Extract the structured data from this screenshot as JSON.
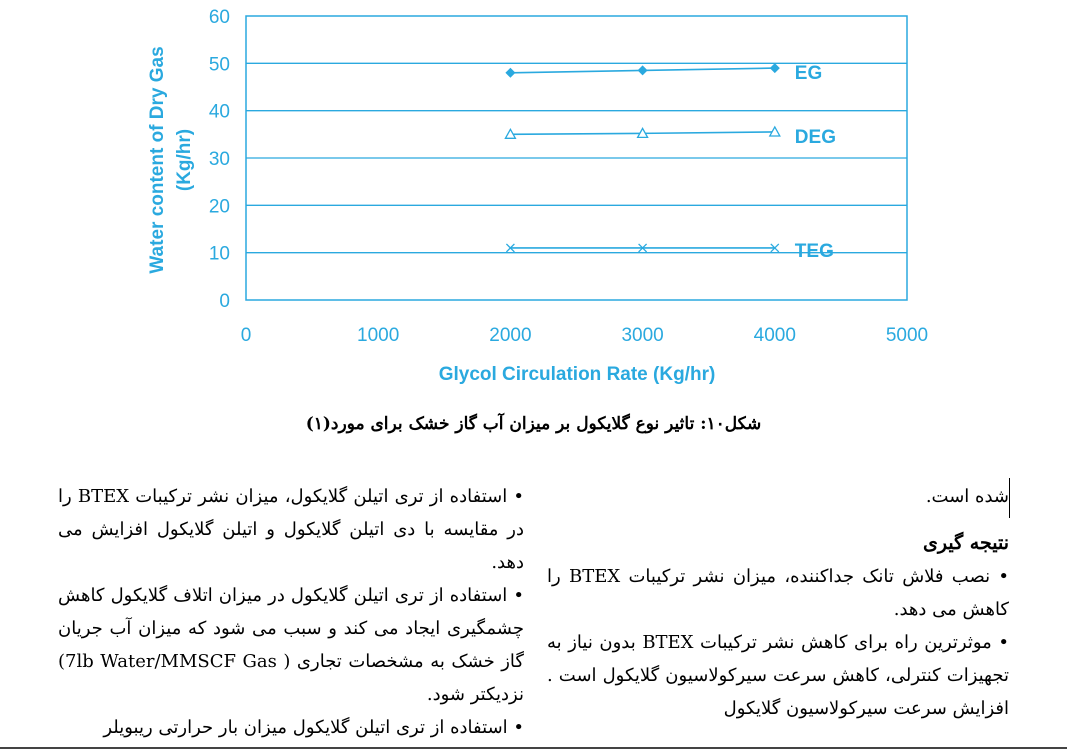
{
  "chart_data": {
    "type": "line",
    "xlabel": "Glycol Circulation Rate (Kg/hr)",
    "ylabel_line1": "Water content of Dry Gas",
    "ylabel_line2": "(Kg/hr)",
    "xlim": [
      0,
      5000
    ],
    "ylim": [
      0,
      60
    ],
    "x_ticks": [
      "0",
      "1000",
      "2000",
      "3000",
      "4000",
      "5000"
    ],
    "y_ticks": [
      "0",
      "10",
      "20",
      "30",
      "40",
      "50",
      "60"
    ],
    "grid": "horizontal",
    "color": "#2aa9df",
    "series": [
      {
        "name": "EG",
        "marker": "diamond",
        "x": [
          2000,
          3000,
          4000
        ],
        "y": [
          48,
          48.5,
          49
        ]
      },
      {
        "name": "DEG",
        "marker": "triangle",
        "x": [
          2000,
          3000,
          4000
        ],
        "y": [
          35,
          35.2,
          35.5
        ]
      },
      {
        "name": "TEG",
        "marker": "x",
        "x": [
          2000,
          3000,
          4000
        ],
        "y": [
          11,
          11,
          11
        ]
      }
    ]
  },
  "caption": "شکل۱۰: تاثیر نوع گلایکول بر میزان آب گاز خشک برای مورد(۱)",
  "right_column": {
    "intro": "شده است.",
    "heading": "نتیجه گیری",
    "bullet1": "نصب فلاش تانک جداکننده، میزان نشر ترکیبات BTEX را کاهش می دهد.",
    "bullet2": "موثرترین راه برای کاهش نشر ترکیبات BTEX بدون نیاز به تجهیزات کنترلی، کاهش سرعت سیرکولاسیون گلایکول است . افزایش سرعت سیرکولاسیون گلایکول"
  },
  "left_column": {
    "bullet1": "استفاده از تری اتیلن گلایکول، میزان نشر ترکیبات BTEX را در مقایسه با دی اتیلن گلایکول و اتیلن گلایکول افزایش می دهد.",
    "bullet2": "استفاده از تری اتیلن گلایکول در میزان اتلاف گلایکول کاهش چشمگیری ایجاد می کند و سبب می شود که میزان آب جریان گاز خشک به مشخصات تجاری ( 7lb Water/MMSCF Gas) نزدیکتر شود.",
    "bullet3": "استفاده از تری اتیلن گلایکول میزان بار حرارتی ریبویلر"
  }
}
